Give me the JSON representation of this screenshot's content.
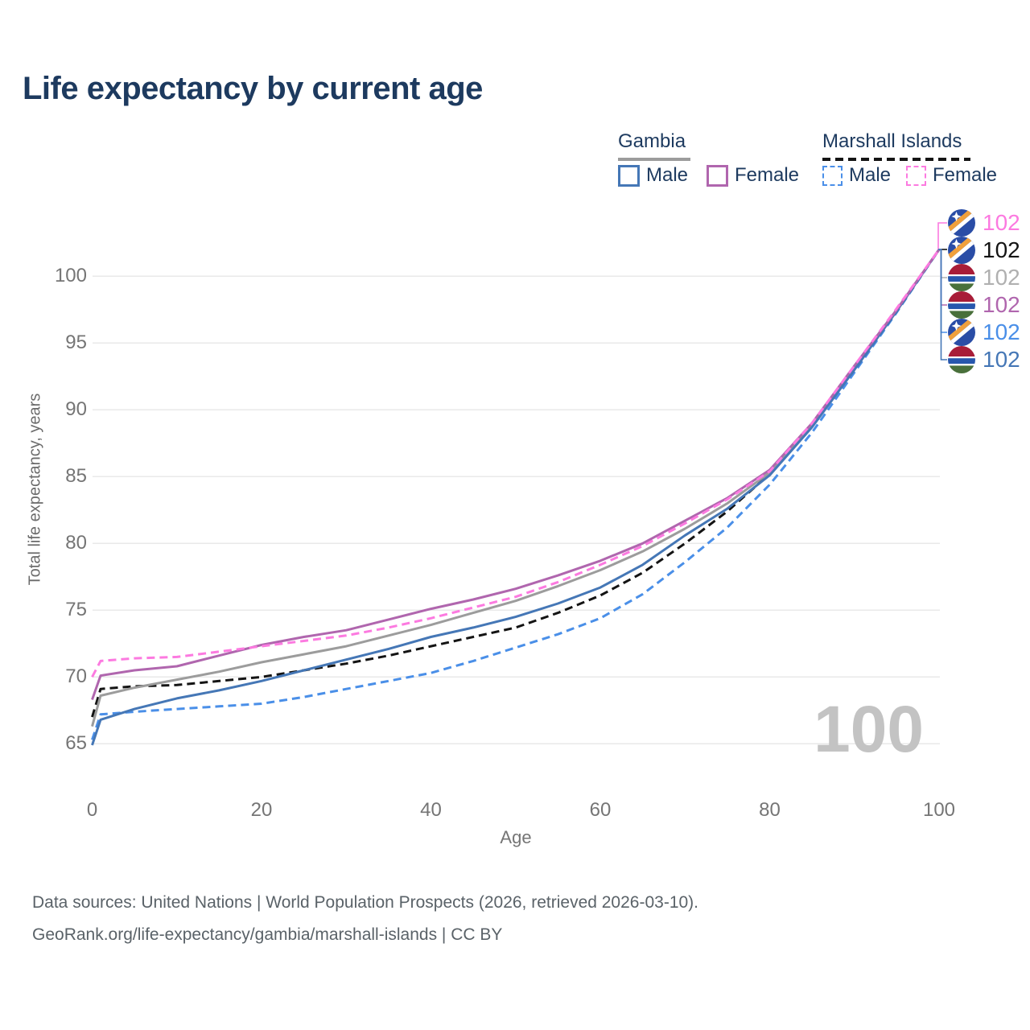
{
  "title": "Life expectancy by current age",
  "watermark": "100",
  "legend": {
    "groups": [
      {
        "label": "Gambia",
        "line_style": "solid",
        "underline_color": "#9c9c9c",
        "items": [
          {
            "label": "Male",
            "color": "#4577b6",
            "dashed": false
          },
          {
            "label": "Female",
            "color": "#b066ae",
            "dashed": false
          }
        ]
      },
      {
        "label": "Marshall Islands",
        "line_style": "dashed",
        "underline_color": "#141414",
        "items": [
          {
            "label": "Male",
            "color": "#4a8fe8",
            "dashed": true
          },
          {
            "label": "Female",
            "color": "#fc7ae0",
            "dashed": true
          }
        ]
      }
    ]
  },
  "chart_data": {
    "type": "line",
    "title": "Life expectancy by current age",
    "xlabel": "Age",
    "ylabel": "Total life expectancy, years",
    "x_ticks": [
      0,
      20,
      40,
      60,
      80,
      100
    ],
    "y_ticks": [
      65,
      70,
      75,
      80,
      85,
      90,
      95,
      100
    ],
    "xlim": [
      0,
      100
    ],
    "ylim": [
      63,
      103.5
    ],
    "grid": "horizontal-only",
    "x": [
      0,
      1,
      5,
      10,
      15,
      20,
      25,
      30,
      35,
      40,
      45,
      50,
      55,
      60,
      65,
      70,
      75,
      80,
      85,
      90,
      95,
      100
    ],
    "series": [
      {
        "name": "Marshall Islands Male",
        "country": "Marshall Islands",
        "sex": "Male",
        "color": "#4a8fe8",
        "dash": "dashed",
        "values": [
          65.3,
          67.2,
          67.4,
          67.6,
          67.8,
          68.0,
          68.5,
          69.1,
          69.7,
          70.3,
          71.2,
          72.2,
          73.2,
          74.4,
          76.2,
          78.6,
          81.2,
          84.4,
          88.3,
          92.8,
          97.3,
          102
        ]
      },
      {
        "name": "Marshall Islands Both sexes",
        "country": "Marshall Islands",
        "sex": "Both sexes",
        "color": "#141414",
        "dash": "dashed",
        "values": [
          67.0,
          69.1,
          69.3,
          69.4,
          69.7,
          70.0,
          70.5,
          71.0,
          71.6,
          72.3,
          73.0,
          73.7,
          74.8,
          76.1,
          77.8,
          80.0,
          82.4,
          85.2,
          88.8,
          93.0,
          97.4,
          102
        ]
      },
      {
        "name": "Gambia Both sexes",
        "country": "Gambia",
        "sex": "Both sexes",
        "color": "#9c9c9c",
        "dash": "solid",
        "values": [
          66.3,
          68.6,
          69.2,
          69.8,
          70.4,
          71.1,
          71.7,
          72.3,
          73.1,
          73.9,
          74.8,
          75.7,
          76.8,
          78.0,
          79.4,
          81.1,
          83.0,
          85.3,
          88.9,
          93.2,
          97.5,
          102
        ]
      },
      {
        "name": "Gambia Male",
        "country": "Gambia",
        "sex": "Male",
        "color": "#4577b6",
        "dash": "solid",
        "values": [
          64.9,
          66.8,
          67.6,
          68.4,
          69.0,
          69.7,
          70.5,
          71.3,
          72.1,
          73.0,
          73.7,
          74.5,
          75.5,
          76.7,
          78.4,
          80.6,
          82.6,
          85.1,
          88.7,
          93.0,
          97.4,
          102
        ]
      },
      {
        "name": "Gambia Female",
        "country": "Gambia",
        "sex": "Female",
        "color": "#b066ae",
        "dash": "solid",
        "values": [
          68.3,
          70.1,
          70.5,
          70.8,
          71.6,
          72.4,
          73.0,
          73.5,
          74.3,
          75.1,
          75.8,
          76.6,
          77.6,
          78.7,
          80.0,
          81.7,
          83.4,
          85.5,
          89.0,
          93.3,
          97.5,
          102
        ]
      },
      {
        "name": "Marshall Islands Female",
        "country": "Marshall Islands",
        "sex": "Female",
        "color": "#fc7ae0",
        "dash": "dashed",
        "values": [
          70.0,
          71.2,
          71.4,
          71.5,
          71.9,
          72.3,
          72.7,
          73.1,
          73.7,
          74.4,
          75.2,
          76.0,
          77.1,
          78.4,
          79.8,
          81.5,
          83.3,
          85.4,
          89.0,
          93.3,
          97.6,
          102
        ]
      }
    ],
    "end_labels": [
      {
        "series": "Marshall Islands Female",
        "flag": "flag-mh",
        "value": "102",
        "color": "#fc7ae0"
      },
      {
        "series": "Marshall Islands Both sexes",
        "flag": "flag-mh",
        "value": "102",
        "color": "#141414"
      },
      {
        "series": "Gambia Both sexes",
        "flag": "flag-gm",
        "value": "102",
        "color": "#b0b0b0"
      },
      {
        "series": "Gambia Female",
        "flag": "flag-gm",
        "value": "102",
        "color": "#b066ae"
      },
      {
        "series": "Marshall Islands Male",
        "flag": "flag-mh",
        "value": "102",
        "color": "#4a8fe8"
      },
      {
        "series": "Gambia Male",
        "flag": "flag-gm",
        "value": "102",
        "color": "#4577b6"
      }
    ]
  },
  "footer": {
    "line1": "Data sources: United Nations | World Population Prospects (2026, retrieved 2026-03-10).",
    "line2": "GeoRank.org/life-expectancy/gambia/marshall-islands | CC BY"
  }
}
